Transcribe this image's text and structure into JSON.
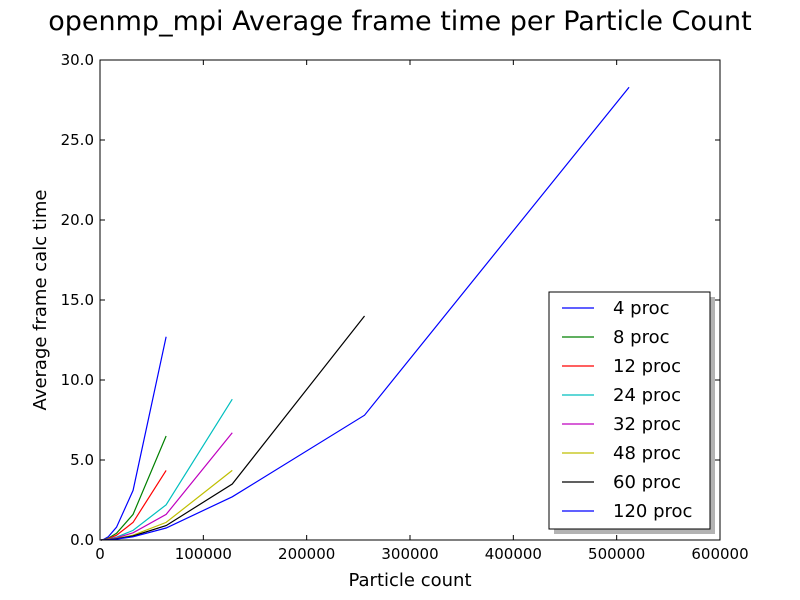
{
  "chart_data": {
    "type": "line",
    "title": "openmp_mpi Average frame time per Particle Count",
    "xlabel": "Particle count",
    "ylabel": "Average frame calc time",
    "xlim": [
      0,
      600000
    ],
    "ylim": [
      0,
      30
    ],
    "x_ticks": [
      0,
      100000,
      200000,
      300000,
      400000,
      500000,
      600000
    ],
    "x_tick_labels": [
      "0",
      "100000",
      "200000",
      "300000",
      "400000",
      "500000",
      "600000"
    ],
    "y_ticks": [
      0,
      5,
      10,
      15,
      20,
      25,
      30
    ],
    "y_tick_labels": [
      "0.0",
      "5.0",
      "10.0",
      "15.0",
      "20.0",
      "25.0",
      "30.0"
    ],
    "grid": false,
    "legend_position": "bottom-right",
    "series": [
      {
        "name": "4 proc",
        "color": "#0000ff",
        "x": [
          1000,
          2000,
          4000,
          8000,
          16000,
          32000,
          64000
        ],
        "y": [
          0.003,
          0.012,
          0.05,
          0.2,
          0.8,
          3.1,
          12.7
        ]
      },
      {
        "name": "8 proc",
        "color": "#008000",
        "x": [
          1000,
          2000,
          4000,
          8000,
          16000,
          32000,
          64000
        ],
        "y": [
          0.002,
          0.007,
          0.03,
          0.11,
          0.42,
          1.6,
          6.5
        ]
      },
      {
        "name": "12 proc",
        "color": "#ff0000",
        "x": [
          1000,
          2000,
          4000,
          8000,
          16000,
          32000,
          64000
        ],
        "y": [
          0.002,
          0.005,
          0.02,
          0.08,
          0.3,
          1.1,
          4.35
        ]
      },
      {
        "name": "24 proc",
        "color": "#00bfbf",
        "x": [
          1000,
          2000,
          4000,
          8000,
          16000,
          32000,
          64000,
          128000
        ],
        "y": [
          0.002,
          0.004,
          0.012,
          0.05,
          0.18,
          0.6,
          2.2,
          8.8
        ]
      },
      {
        "name": "32 proc",
        "color": "#bf00bf",
        "x": [
          1000,
          2000,
          4000,
          8000,
          16000,
          32000,
          64000,
          128000
        ],
        "y": [
          0.002,
          0.004,
          0.01,
          0.04,
          0.14,
          0.45,
          1.6,
          6.7
        ]
      },
      {
        "name": "48 proc",
        "color": "#bfbf00",
        "x": [
          1000,
          2000,
          4000,
          8000,
          16000,
          32000,
          64000,
          128000
        ],
        "y": [
          0.002,
          0.003,
          0.008,
          0.03,
          0.1,
          0.3,
          1.1,
          4.35
        ]
      },
      {
        "name": "60 proc",
        "color": "#000000",
        "x": [
          1000,
          2000,
          4000,
          8000,
          16000,
          32000,
          64000,
          128000,
          256000
        ],
        "y": [
          0.002,
          0.003,
          0.007,
          0.025,
          0.08,
          0.25,
          0.9,
          3.5,
          14.0
        ]
      },
      {
        "name": "120 proc",
        "color": "#0000ff",
        "x": [
          1000,
          2000,
          4000,
          8000,
          16000,
          32000,
          64000,
          128000,
          256000,
          512000
        ],
        "y": [
          0.002,
          0.003,
          0.006,
          0.02,
          0.06,
          0.2,
          0.75,
          2.7,
          7.8,
          28.3
        ]
      }
    ]
  }
}
